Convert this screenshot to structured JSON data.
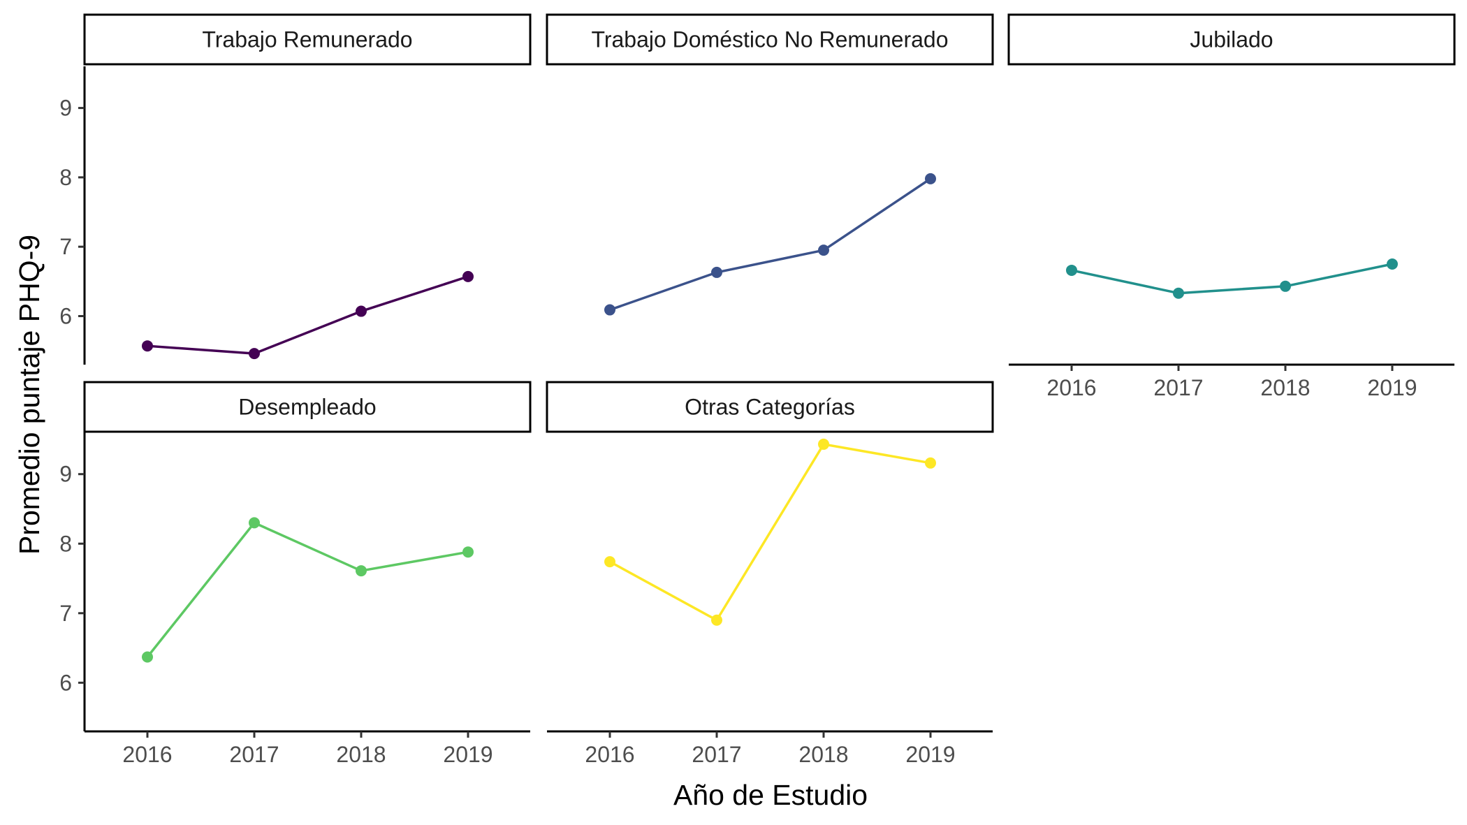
{
  "chart_data": {
    "type": "line",
    "facet": true,
    "xlabel": "Año de Estudio",
    "ylabel": "Promedio puntaje PHQ-9",
    "x": [
      "2016",
      "2017",
      "2018",
      "2019"
    ],
    "ylim": [
      5.3,
      9.6
    ],
    "yticks": [
      6,
      7,
      8,
      9
    ],
    "grid": false,
    "legend": "none",
    "panels": [
      {
        "name": "Trabajo Remunerado",
        "color": "#440154",
        "values": [
          5.57,
          5.46,
          6.07,
          6.57
        ]
      },
      {
        "name": "Trabajo Doméstico No Remunerado",
        "color": "#3B528B",
        "values": [
          6.09,
          6.63,
          6.95,
          7.98
        ]
      },
      {
        "name": "Jubilado",
        "color": "#21908C",
        "values": [
          6.66,
          6.33,
          6.43,
          6.75
        ]
      },
      {
        "name": "Desempleado",
        "color": "#5DC863",
        "values": [
          6.37,
          8.3,
          7.61,
          7.88
        ]
      },
      {
        "name": "Otras Categorías",
        "color": "#FDE725",
        "values": [
          7.74,
          6.9,
          9.43,
          9.16
        ]
      }
    ]
  }
}
